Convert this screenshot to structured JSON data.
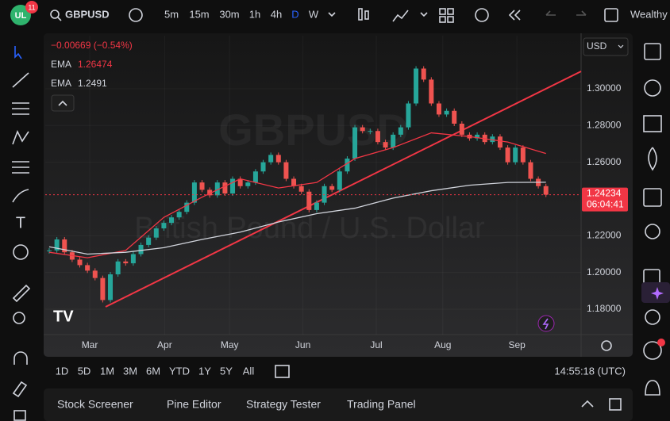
{
  "toolbar": {
    "badge": "11",
    "symbol": "GBPUSD",
    "intervals": [
      "5m",
      "15m",
      "30m",
      "1h",
      "4h",
      "D",
      "W"
    ],
    "account": "Wealthy"
  },
  "legend": {
    "change": "−0.00669 (−0.54%)"
  },
  "currency": "USD",
  "chart_data": {
    "type": "candlestick",
    "watermark": {
      "symbol": "GBPUSD",
      "description": "British Pound / U.S. Dollar"
    },
    "values": [
      1.212,
      1.218,
      1.211,
      1.207,
      1.204,
      1.201,
      1.197,
      1.185,
      1.199,
      1.206,
      1.205,
      1.21,
      1.215,
      1.219,
      1.224,
      1.227,
      1.23,
      1.233,
      1.238,
      1.249,
      1.245,
      1.242,
      1.249,
      1.243,
      1.251,
      1.247,
      1.249,
      1.255,
      1.26,
      1.264,
      1.26,
      1.251,
      1.247,
      1.244,
      1.234,
      1.238,
      1.247,
      1.245,
      1.255,
      1.262,
      1.279,
      1.277,
      1.277,
      1.271,
      1.268,
      1.275,
      1.279,
      1.292,
      1.311,
      1.305,
      1.292,
      1.286,
      1.288,
      1.281,
      1.275,
      1.273,
      1.275,
      1.271,
      1.274,
      1.268,
      1.26,
      1.268,
      1.26,
      1.251,
      1.247,
      1.24234
    ],
    "up_color": "#26a69a",
    "down_color": "#ef5350",
    "series": [
      {
        "name": "EMA",
        "color": "#f23645",
        "x": [
          0,
          5,
          10,
          15,
          20,
          25,
          30,
          35,
          40,
          45,
          50,
          55,
          60,
          65
        ],
        "values": [
          1.211,
          1.208,
          1.212,
          1.23,
          1.241,
          1.251,
          1.246,
          1.249,
          1.262,
          1.268,
          1.276,
          1.274,
          1.271,
          1.26474
        ]
      },
      {
        "name": "EMA",
        "color": "#d1d4dc",
        "x": [
          0,
          5,
          10,
          15,
          20,
          25,
          30,
          35,
          40,
          45,
          50,
          55,
          60,
          65
        ],
        "values": [
          1.214,
          1.21,
          1.211,
          1.2135,
          1.218,
          1.222,
          1.2275,
          1.232,
          1.235,
          1.2405,
          1.2445,
          1.2475,
          1.249,
          1.2491
        ]
      }
    ],
    "countdown": "06:04:41",
    "xlim": [
      -0.52,
      69.6
    ],
    "xticks": [
      {
        "value": 5.3,
        "label": "Mar"
      },
      {
        "value": 15.1,
        "label": "Apr"
      },
      {
        "value": 23.6,
        "label": "May"
      },
      {
        "value": 33.2,
        "label": "Jun"
      },
      {
        "value": 42.8,
        "label": "Jul"
      },
      {
        "value": 51.5,
        "label": "Aug"
      },
      {
        "value": 61.2,
        "label": "Sep"
      }
    ],
    "ylim": [
      1.1662,
      1.3289
    ],
    "yticks": [
      {
        "value": 1.18,
        "label": "1.18000"
      },
      {
        "value": 1.2,
        "label": "1.20000"
      },
      {
        "value": 1.22,
        "label": "1.22000"
      },
      {
        "value": 1.26,
        "label": "1.26000"
      },
      {
        "value": 1.28,
        "label": "1.28000"
      },
      {
        "value": 1.3,
        "label": "1.30000"
      }
    ],
    "grid": true
  },
  "ranges": [
    "1D",
    "5D",
    "1M",
    "3M",
    "6M",
    "YTD",
    "1Y",
    "5Y",
    "All"
  ],
  "clock": "14:55:18 (UTC)",
  "panel_tabs": [
    "Stock Screener",
    "Pine Editor",
    "Strategy Tester",
    "Trading Panel"
  ]
}
